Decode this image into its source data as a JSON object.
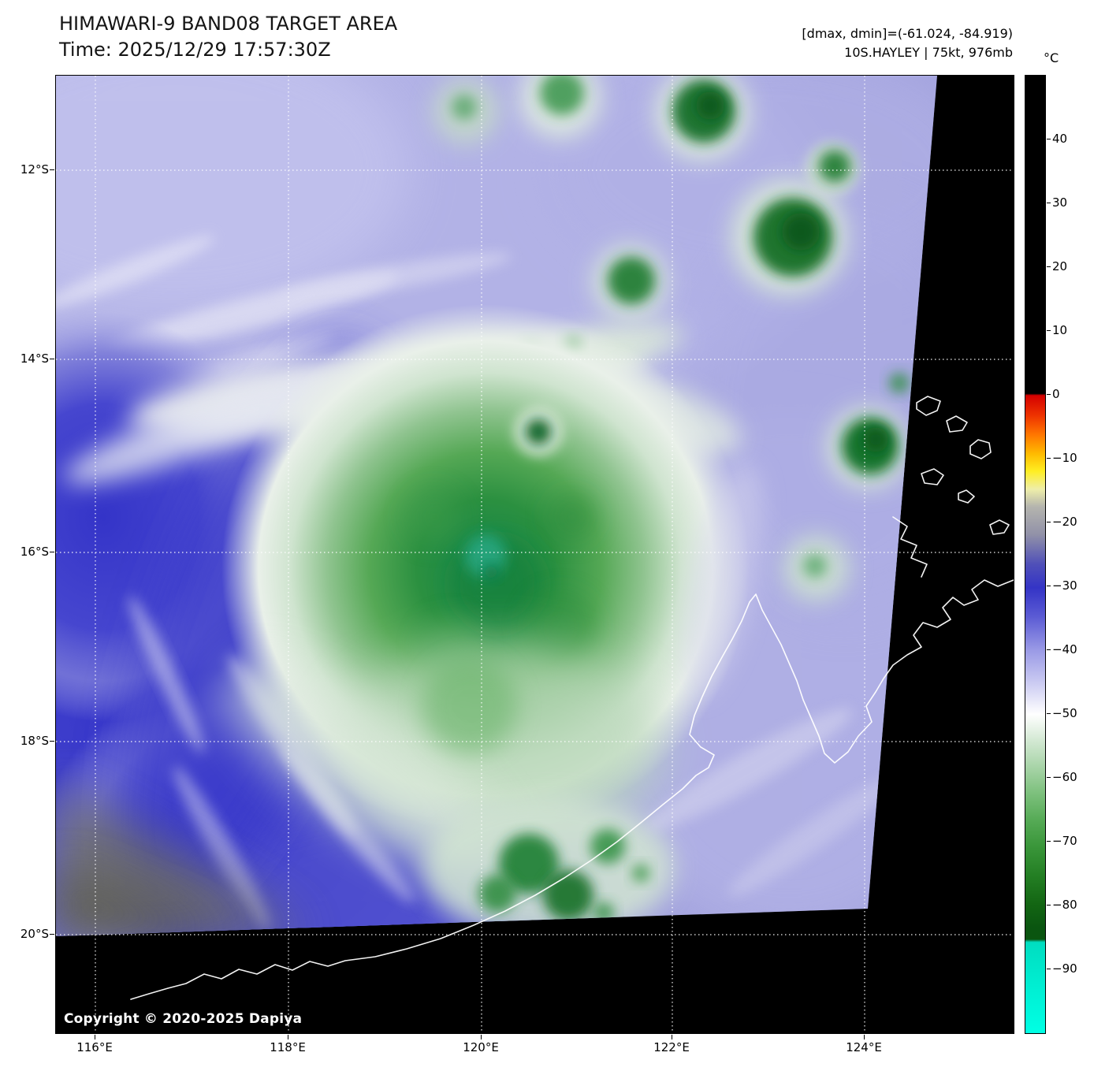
{
  "header": {
    "title": "HIMAWARI-9 BAND08 TARGET AREA",
    "time": "Time: 2025/12/29 17:57:30Z",
    "stats": "[dmax, dmin]=(-61.024, -84.919)",
    "storm": "10S.HAYLEY | 75kt, 976mb"
  },
  "map": {
    "copyright": "Copyright © 2020-2025 Dapiya",
    "x_ticks": [
      "116°E",
      "118°E",
      "120°E",
      "122°E",
      "124°E"
    ],
    "y_ticks": [
      "12°S",
      "14°S",
      "16°S",
      "18°S",
      "20°S"
    ]
  },
  "colorbar": {
    "unit": "°C",
    "ticks": [
      "40",
      "30",
      "20",
      "10",
      "0",
      "−10",
      "−20",
      "−30",
      "−40",
      "−50",
      "−60",
      "−70",
      "−80",
      "−90"
    ],
    "stops": [
      {
        "at": 0.0,
        "color": "#000000"
      },
      {
        "at": 0.332,
        "color": "#000000"
      },
      {
        "at": 0.334,
        "color": "#d40000"
      },
      {
        "at": 0.355,
        "color": "#ee3300"
      },
      {
        "at": 0.375,
        "color": "#ff7700"
      },
      {
        "at": 0.395,
        "color": "#ffbb00"
      },
      {
        "at": 0.413,
        "color": "#ffee22"
      },
      {
        "at": 0.432,
        "color": "#eeeeaa"
      },
      {
        "at": 0.45,
        "color": "#b5b5ae"
      },
      {
        "at": 0.48,
        "color": "#9090a8"
      },
      {
        "at": 0.51,
        "color": "#5050b8"
      },
      {
        "at": 0.535,
        "color": "#3434c6"
      },
      {
        "at": 0.565,
        "color": "#5b5bd4"
      },
      {
        "at": 0.6,
        "color": "#9a9ae6"
      },
      {
        "at": 0.635,
        "color": "#ccccf2"
      },
      {
        "at": 0.667,
        "color": "#ffffff"
      },
      {
        "at": 0.695,
        "color": "#d2e8d2"
      },
      {
        "at": 0.722,
        "color": "#a8d4a8"
      },
      {
        "at": 0.75,
        "color": "#7cc07c"
      },
      {
        "at": 0.778,
        "color": "#55aa55"
      },
      {
        "at": 0.805,
        "color": "#3a963a"
      },
      {
        "at": 0.835,
        "color": "#247f24"
      },
      {
        "at": 0.865,
        "color": "#136613"
      },
      {
        "at": 0.89,
        "color": "#0a5510"
      },
      {
        "at": 0.902,
        "color": "#0a5510"
      },
      {
        "at": 0.905,
        "color": "#00ddc0"
      },
      {
        "at": 0.95,
        "color": "#00eed2"
      },
      {
        "at": 1.0,
        "color": "#00ffe4"
      }
    ]
  }
}
